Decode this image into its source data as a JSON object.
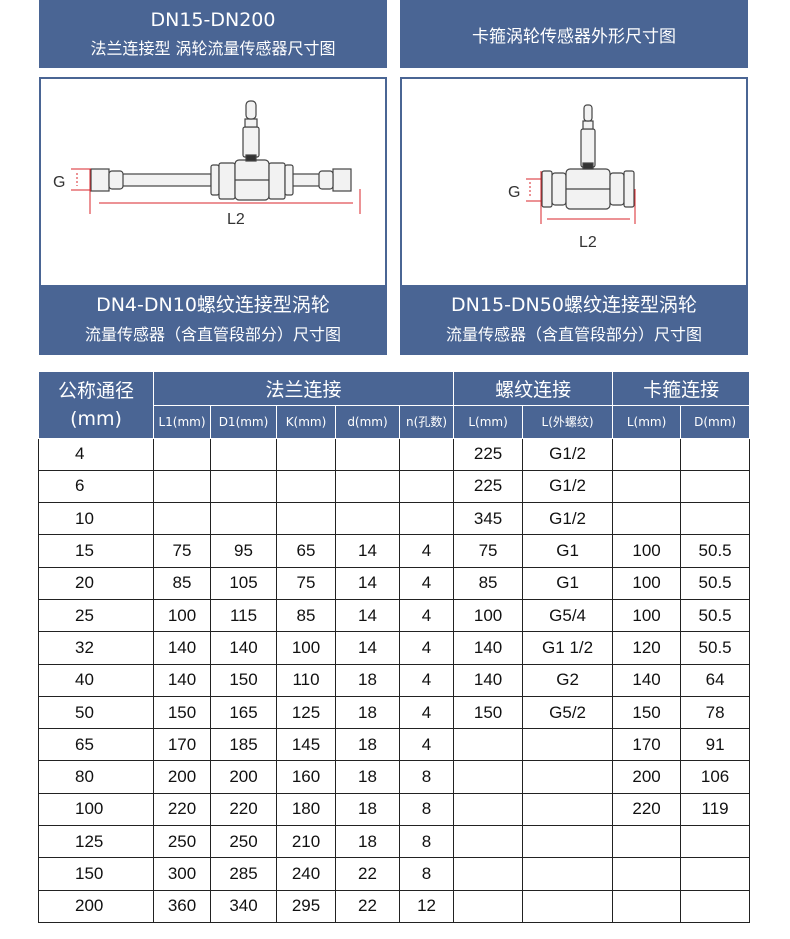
{
  "header_left": {
    "line1": "DN15-DN200",
    "line2": "法兰连接型 涡轮流量传感器尺寸图"
  },
  "header_right": {
    "line1": "卡箍涡轮传感器外形尺寸图"
  },
  "diagram_left": {
    "label_g": "G",
    "label_l2": "L2",
    "caption1": "DN4-DN10螺纹连接型涡轮",
    "caption2": "流量传感器（含直管段部分）尺寸图"
  },
  "diagram_right": {
    "label_g": "G",
    "label_l2": "L2",
    "caption1": "DN15-DN50螺纹连接型涡轮",
    "caption2": "流量传感器（含直管段部分）尺寸图"
  },
  "colors": {
    "accent": "#4a6594",
    "dimension": "#d9262b"
  },
  "table": {
    "nominal_label": "公称通径",
    "nominal_unit": "(mm)",
    "groups": [
      "法兰连接",
      "螺纹连接",
      "卡箍连接"
    ],
    "columns": [
      "L1(mm)",
      "D1(mm)",
      "K(mm)",
      "d(mm)",
      "n(孔数)",
      "L(mm)",
      "L(外螺纹)",
      "L(mm)",
      "D(mm)"
    ],
    "rows": [
      [
        "4",
        null,
        null,
        null,
        null,
        null,
        "225",
        "G1/2",
        "",
        ""
      ],
      [
        "6",
        null,
        null,
        null,
        null,
        null,
        "225",
        "G1/2",
        "",
        ""
      ],
      [
        "10",
        null,
        null,
        null,
        null,
        null,
        "345",
        "G1/2",
        "",
        ""
      ],
      [
        "15",
        "75",
        "95",
        "65",
        "14",
        "4",
        "75",
        "G1",
        "100",
        "50.5"
      ],
      [
        "20",
        "85",
        "105",
        "75",
        "14",
        "4",
        "85",
        "G1",
        "100",
        "50.5"
      ],
      [
        "25",
        "100",
        "115",
        "85",
        "14",
        "4",
        "100",
        "G5/4",
        "100",
        "50.5"
      ],
      [
        "32",
        "140",
        "140",
        "100",
        "14",
        "4",
        "140",
        "G1 1/2",
        "120",
        "50.5"
      ],
      [
        "40",
        "140",
        "150",
        "110",
        "18",
        "4",
        "140",
        "G2",
        "140",
        "64"
      ],
      [
        "50",
        "150",
        "165",
        "125",
        "18",
        "4",
        "150",
        "G5/2",
        "150",
        "78"
      ],
      [
        "65",
        "170",
        "185",
        "145",
        "18",
        "4",
        "",
        "",
        "170",
        "91"
      ],
      [
        "80",
        "200",
        "200",
        "160",
        "18",
        "8",
        "",
        "",
        "200",
        "106"
      ],
      [
        "100",
        "220",
        "220",
        "180",
        "18",
        "8",
        "",
        "",
        "220",
        "119"
      ],
      [
        "125",
        "250",
        "250",
        "210",
        "18",
        "8",
        "",
        "",
        "",
        ""
      ],
      [
        "150",
        "300",
        "285",
        "240",
        "22",
        "8",
        "",
        "",
        "",
        ""
      ],
      [
        "200",
        "360",
        "340",
        "295",
        "22",
        "12",
        "",
        "",
        "",
        ""
      ]
    ]
  }
}
